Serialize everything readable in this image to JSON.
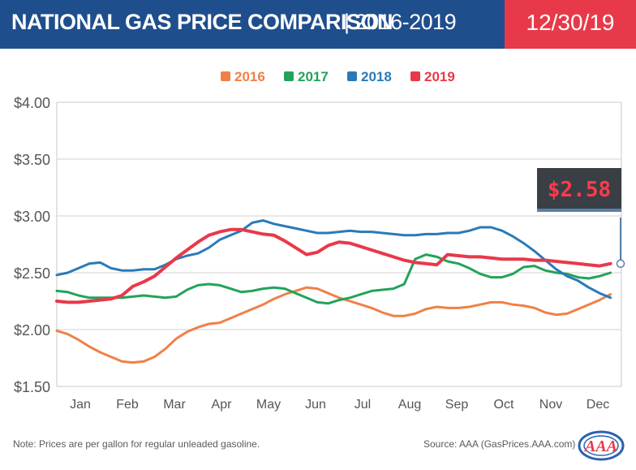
{
  "header": {
    "title": "NATIONAL GAS PRICE COMPARISON",
    "subtitle": "| 2016-2019",
    "date": "12/30/19"
  },
  "footer": {
    "note": "Note: Prices are per gallon for regular unleaded gasoline.",
    "source": "Source: AAA (GasPrices.AAA.com)",
    "logo_text": "AAA"
  },
  "chart_data": {
    "type": "line",
    "title": "NATIONAL GAS PRICE COMPARISON",
    "subtitle": "2016-2019",
    "x_ticks": [
      "Jan",
      "Feb",
      "Mar",
      "Apr",
      "May",
      "Jun",
      "Jul",
      "Aug",
      "Sep",
      "Oct",
      "Nov",
      "Dec"
    ],
    "y_ticks": [
      "$4.00",
      "$3.50",
      "$3.00",
      "$2.50",
      "$2.00",
      "$1.50"
    ],
    "ylim": [
      1.5,
      4.0
    ],
    "xlim": [
      1,
      53
    ],
    "x_unit": "week of year",
    "grid": true,
    "legend": "top-center",
    "callout": {
      "label": "$2.58",
      "series": "2019",
      "value": 2.58
    },
    "series": [
      {
        "name": "2016",
        "color": "#f08047",
        "x": [
          1,
          2,
          3,
          4,
          5,
          6,
          7,
          8,
          9,
          10,
          11,
          12,
          13,
          14,
          15,
          16,
          17,
          18,
          19,
          20,
          21,
          22,
          23,
          24,
          25,
          26,
          27,
          28,
          29,
          30,
          31,
          32,
          33,
          34,
          35,
          36,
          37,
          38,
          39,
          40,
          41,
          42,
          43,
          44,
          45,
          46,
          47,
          48,
          49,
          50,
          51,
          52
        ],
        "y": [
          1.99,
          1.96,
          1.91,
          1.85,
          1.8,
          1.76,
          1.72,
          1.71,
          1.72,
          1.76,
          1.83,
          1.92,
          1.98,
          2.02,
          2.05,
          2.06,
          2.1,
          2.14,
          2.18,
          2.22,
          2.27,
          2.31,
          2.34,
          2.37,
          2.36,
          2.32,
          2.28,
          2.25,
          2.22,
          2.19,
          2.15,
          2.12,
          2.12,
          2.14,
          2.18,
          2.2,
          2.19,
          2.19,
          2.2,
          2.22,
          2.24,
          2.24,
          2.22,
          2.21,
          2.19,
          2.15,
          2.13,
          2.14,
          2.18,
          2.22,
          2.26,
          2.31
        ]
      },
      {
        "name": "2017",
        "color": "#22a35a",
        "x": [
          1,
          2,
          3,
          4,
          5,
          6,
          7,
          8,
          9,
          10,
          11,
          12,
          13,
          14,
          15,
          16,
          17,
          18,
          19,
          20,
          21,
          22,
          23,
          24,
          25,
          26,
          27,
          28,
          29,
          30,
          31,
          32,
          33,
          34,
          35,
          36,
          37,
          38,
          39,
          40,
          41,
          42,
          43,
          44,
          45,
          46,
          47,
          48,
          49,
          50,
          51,
          52
        ],
        "y": [
          2.34,
          2.33,
          2.3,
          2.28,
          2.28,
          2.28,
          2.28,
          2.29,
          2.3,
          2.29,
          2.28,
          2.29,
          2.35,
          2.39,
          2.4,
          2.39,
          2.36,
          2.33,
          2.34,
          2.36,
          2.37,
          2.36,
          2.32,
          2.28,
          2.24,
          2.23,
          2.26,
          2.28,
          2.31,
          2.34,
          2.35,
          2.36,
          2.4,
          2.62,
          2.66,
          2.64,
          2.6,
          2.58,
          2.54,
          2.49,
          2.46,
          2.46,
          2.49,
          2.55,
          2.56,
          2.52,
          2.5,
          2.49,
          2.46,
          2.45,
          2.47,
          2.5
        ]
      },
      {
        "name": "2018",
        "color": "#2a7ab8",
        "x": [
          1,
          2,
          3,
          4,
          5,
          6,
          7,
          8,
          9,
          10,
          11,
          12,
          13,
          14,
          15,
          16,
          17,
          18,
          19,
          20,
          21,
          22,
          23,
          24,
          25,
          26,
          27,
          28,
          29,
          30,
          31,
          32,
          33,
          34,
          35,
          36,
          37,
          38,
          39,
          40,
          41,
          42,
          43,
          44,
          45,
          46,
          47,
          48,
          49,
          50,
          51,
          52
        ],
        "y": [
          2.48,
          2.5,
          2.54,
          2.58,
          2.59,
          2.54,
          2.52,
          2.52,
          2.53,
          2.53,
          2.57,
          2.62,
          2.65,
          2.67,
          2.72,
          2.79,
          2.83,
          2.87,
          2.94,
          2.96,
          2.93,
          2.91,
          2.89,
          2.87,
          2.85,
          2.85,
          2.86,
          2.87,
          2.86,
          2.86,
          2.85,
          2.84,
          2.83,
          2.83,
          2.84,
          2.84,
          2.85,
          2.85,
          2.87,
          2.9,
          2.9,
          2.87,
          2.82,
          2.76,
          2.69,
          2.61,
          2.53,
          2.47,
          2.43,
          2.37,
          2.32,
          2.28
        ]
      },
      {
        "name": "2019",
        "color": "#e8394a",
        "x": [
          1,
          2,
          3,
          4,
          5,
          6,
          7,
          8,
          9,
          10,
          11,
          12,
          13,
          14,
          15,
          16,
          17,
          18,
          19,
          20,
          21,
          22,
          23,
          24,
          25,
          26,
          27,
          28,
          29,
          30,
          31,
          32,
          33,
          34,
          35,
          36,
          37,
          38,
          39,
          40,
          41,
          42,
          43,
          44,
          45,
          46,
          47,
          48,
          49,
          50,
          51,
          52
        ],
        "y": [
          2.25,
          2.24,
          2.24,
          2.25,
          2.26,
          2.27,
          2.3,
          2.38,
          2.42,
          2.47,
          2.55,
          2.63,
          2.7,
          2.77,
          2.83,
          2.86,
          2.88,
          2.88,
          2.86,
          2.84,
          2.83,
          2.78,
          2.72,
          2.66,
          2.68,
          2.74,
          2.77,
          2.76,
          2.73,
          2.7,
          2.67,
          2.64,
          2.61,
          2.59,
          2.58,
          2.57,
          2.66,
          2.65,
          2.64,
          2.64,
          2.63,
          2.62,
          2.62,
          2.62,
          2.61,
          2.61,
          2.6,
          2.59,
          2.58,
          2.57,
          2.56,
          2.58
        ]
      }
    ]
  }
}
